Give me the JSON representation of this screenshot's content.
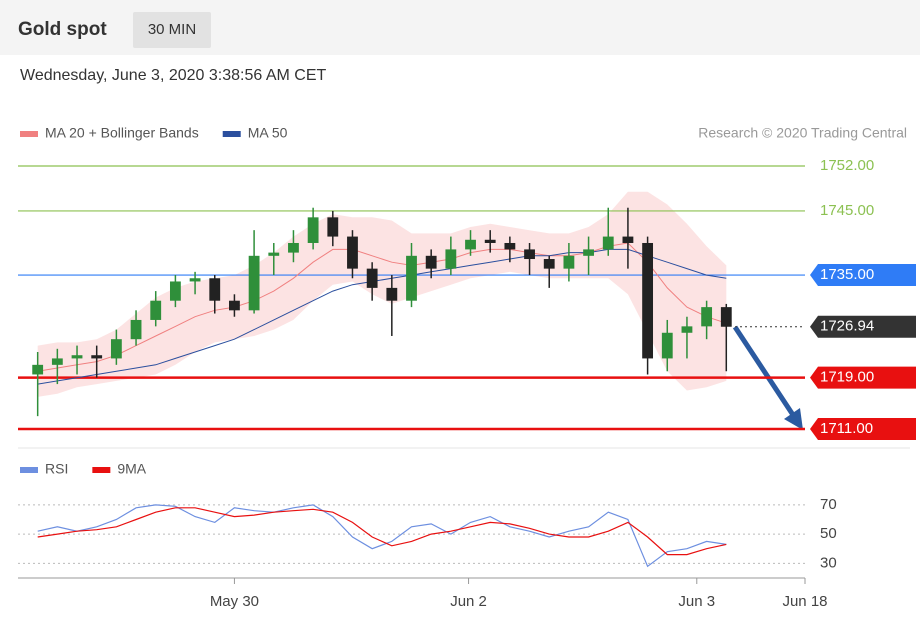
{
  "header": {
    "title": "Gold spot",
    "interval": "30 MIN",
    "timestamp": "Wednesday, June 3, 2020 3:38:56 AM CET",
    "credit": "Research © 2020 Trading Central"
  },
  "chart_data": [
    {
      "type": "candlestick",
      "x": [
        1,
        2,
        3,
        4,
        5,
        6,
        7,
        8,
        9,
        10,
        11,
        12,
        13,
        14,
        15,
        16,
        17,
        18,
        19,
        20,
        21,
        22,
        23,
        24,
        25,
        26,
        27,
        28,
        29,
        30,
        31,
        32,
        33,
        34,
        35,
        36
      ],
      "open": [
        1719.5,
        1721,
        1722,
        1722.5,
        1722,
        1725,
        1728,
        1731,
        1734,
        1734.5,
        1731,
        1729.5,
        1738,
        1738.5,
        1740,
        1744,
        1741,
        1736,
        1733,
        1731,
        1738,
        1736,
        1739,
        1740.5,
        1740,
        1739,
        1737.5,
        1736,
        1738,
        1739,
        1741,
        1740,
        1722,
        1726,
        1727,
        1730
      ],
      "high": [
        1723,
        1723.5,
        1724,
        1724,
        1726.5,
        1729.5,
        1732.5,
        1735,
        1735.5,
        1735,
        1732,
        1742,
        1740,
        1742,
        1745.5,
        1745,
        1742,
        1737,
        1735,
        1740,
        1739,
        1741,
        1742,
        1742,
        1741,
        1740,
        1738,
        1740,
        1741,
        1745.5,
        1745.5,
        1741,
        1728,
        1728.5,
        1731,
        1730.5
      ],
      "low": [
        1713,
        1718,
        1719.5,
        1719,
        1721,
        1724,
        1727,
        1730,
        1732,
        1729,
        1728.5,
        1729,
        1735,
        1737,
        1739,
        1739.5,
        1734.5,
        1731,
        1725.5,
        1730,
        1734.5,
        1735,
        1738,
        1738.5,
        1737,
        1735,
        1733,
        1734,
        1735,
        1738,
        1736,
        1719.5,
        1720,
        1722,
        1725,
        1720
      ],
      "close": [
        1721,
        1722,
        1722.5,
        1722,
        1725,
        1728,
        1731,
        1734,
        1734.5,
        1731,
        1729.5,
        1738,
        1738.5,
        1740,
        1744,
        1741,
        1736,
        1733,
        1731,
        1738,
        1736,
        1739,
        1740.5,
        1740,
        1739,
        1737.5,
        1736,
        1738,
        1739,
        1741,
        1740,
        1722,
        1726,
        1727,
        1730,
        1726.94
      ],
      "up_color": "#2f8f3a",
      "down_color": "#222222",
      "series": [
        {
          "name": "MA 20 + Bollinger Bands",
          "color": "#f08080",
          "values": [
            1720,
            1720.5,
            1721,
            1721.5,
            1722.5,
            1724,
            1725.5,
            1727,
            1728.5,
            1729.5,
            1730,
            1731,
            1732.5,
            1734.5,
            1737,
            1739,
            1739,
            1738,
            1737,
            1736.5,
            1737,
            1737.5,
            1738.5,
            1739,
            1739,
            1738.5,
            1738,
            1738,
            1738.5,
            1739.5,
            1740,
            1737,
            1733,
            1730,
            1728.5,
            1727.5
          ],
          "upper": [
            1724,
            1724.5,
            1724.5,
            1725,
            1726.5,
            1729,
            1731.5,
            1733,
            1734,
            1734.5,
            1735,
            1736.5,
            1738.5,
            1741,
            1743,
            1744.5,
            1744,
            1744,
            1743.5,
            1741.5,
            1741.5,
            1741.5,
            1742.5,
            1743,
            1742.5,
            1742,
            1741.5,
            1741.5,
            1742.5,
            1744.5,
            1748,
            1748,
            1746,
            1743,
            1739.5,
            1736.5
          ],
          "lower": [
            1716,
            1716.5,
            1717.5,
            1718,
            1718.5,
            1719,
            1719.5,
            1721,
            1723,
            1724.5,
            1725,
            1725.5,
            1726.5,
            1728,
            1731,
            1733.5,
            1734,
            1732,
            1730.5,
            1731.5,
            1732.5,
            1733.5,
            1734.5,
            1735,
            1735.5,
            1735,
            1734.5,
            1734.5,
            1734.5,
            1734.5,
            1732,
            1726,
            1720,
            1717,
            1717.5,
            1718.5
          ]
        },
        {
          "name": "MA 50",
          "color": "#2b4f9e",
          "values": [
            1718,
            1718.5,
            1719,
            1719.5,
            1720,
            1720.5,
            1721,
            1722,
            1723,
            1724,
            1725,
            1726.5,
            1728,
            1729.5,
            1731,
            1732.5,
            1733.5,
            1734,
            1734.5,
            1735,
            1735.5,
            1736,
            1736.5,
            1737,
            1737.5,
            1738,
            1738,
            1738.5,
            1738.5,
            1739,
            1739,
            1738,
            1737,
            1736,
            1735,
            1734.5
          ]
        }
      ],
      "xlim": [
        0,
        40
      ],
      "ylim": [
        1708.5,
        1754.5
      ],
      "levels": [
        {
          "value": 1752,
          "label": "1752.00",
          "color": "#8cc152",
          "tag": false,
          "dotted": false
        },
        {
          "value": 1745,
          "label": "1745.00",
          "color": "#8cc152",
          "tag": false,
          "dotted": false
        },
        {
          "value": 1735,
          "label": "1735.00",
          "color": "#2f7cf6",
          "tag": true,
          "dotted": false
        },
        {
          "value": 1726.94,
          "label": "1726.94",
          "color": "#333333",
          "tag": true,
          "dotted": true
        },
        {
          "value": 1719,
          "label": "1719.00",
          "color": "#e81010",
          "tag": true,
          "dotted": false
        },
        {
          "value": 1711,
          "label": "1711.00",
          "color": "#e81010",
          "tag": true,
          "dotted": false
        }
      ]
    },
    {
      "type": "line",
      "x": [
        1,
        2,
        3,
        4,
        5,
        6,
        7,
        8,
        9,
        10,
        11,
        12,
        13,
        14,
        15,
        16,
        17,
        18,
        19,
        20,
        21,
        22,
        23,
        24,
        25,
        26,
        27,
        28,
        29,
        30,
        31,
        32,
        33,
        34,
        35,
        36
      ],
      "series": [
        {
          "name": "RSI",
          "color": "#6d8fe0",
          "values": [
            52,
            55,
            52,
            55,
            60,
            68,
            70,
            69,
            62,
            58,
            68,
            66,
            65,
            68,
            70,
            62,
            48,
            40,
            45,
            55,
            57,
            50,
            58,
            62,
            55,
            52,
            48,
            52,
            55,
            65,
            60,
            28,
            38,
            40,
            45,
            43
          ]
        },
        {
          "name": "9MA",
          "color": "#e81010",
          "values": [
            48,
            50,
            52,
            53,
            55,
            60,
            65,
            68,
            68,
            65,
            62,
            63,
            65,
            66,
            67,
            65,
            58,
            48,
            42,
            45,
            50,
            52,
            55,
            58,
            57,
            54,
            50,
            48,
            48,
            52,
            58,
            48,
            36,
            36,
            40,
            43
          ]
        }
      ],
      "xlim": [
        0,
        40
      ],
      "ylim": [
        20,
        87
      ],
      "yticks": [
        30,
        50,
        70
      ],
      "xticks": [
        {
          "value": 11,
          "label": "May 30"
        },
        {
          "value": 22.9,
          "label": "Jun 2"
        },
        {
          "value": 34.5,
          "label": "Jun 3"
        },
        {
          "value": 40,
          "label": "Jun 18"
        }
      ]
    }
  ]
}
